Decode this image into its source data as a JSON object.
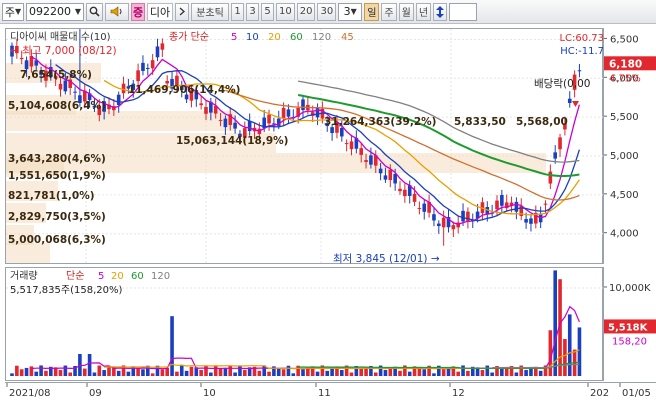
{
  "toolbar": {
    "market_label": "주",
    "stock_code": "092200",
    "stock_name": "디아",
    "period_label": "분초틱",
    "intervals": [
      "1",
      "3",
      "5",
      "10",
      "20",
      "30"
    ],
    "interval_value": "3",
    "day_label": "일",
    "week_label": "주",
    "month_label": "월",
    "year_label": "년",
    "icons": [
      "search-icon",
      "speaker-icon",
      "chevron-right-icon",
      "up-down-arrow-icon"
    ]
  },
  "price_pane": {
    "title": "디아이씨 매물대 수(10)",
    "ma_header": "종가 단순",
    "ma_periods": [
      {
        "label": "5",
        "color": "#cc00cc"
      },
      {
        "label": "10",
        "color": "#1a3fbf"
      },
      {
        "label": "20",
        "color": "#e8a000"
      },
      {
        "label": "60",
        "color": "#1f9a2f"
      },
      {
        "label": "120",
        "color": "#808080"
      },
      {
        "label": "45",
        "color": "#d07030"
      }
    ],
    "high_label": "최고 7,000 (08/12)",
    "low_label": "최저 3,845 (12/01)",
    "dividend_label": "배당락(0,00",
    "volume_profile": [
      "7,654(5,8%)",
      "5,104,608(6,4%)",
      "11,469,906(14,4%)",
      "15,063,144(18,9%)",
      "31,264,363(39,2%)",
      "5,833,50",
      "5,568,00",
      "3,643,280(4,6%)",
      "1,551,650(1,9%)",
      "821,781(1,0%)",
      "2,829,750(3,5%)",
      "5,000,068(6,3%)"
    ],
    "lc_label": "LC:60.73",
    "hc_label": "HC:-11.7",
    "last_price": "6,180",
    "change_pct": "4.75%",
    "y_ticks": [
      "6,500",
      "6,000",
      "5,500",
      "5,000",
      "4,500",
      "4,000"
    ]
  },
  "volume_pane": {
    "title": "거래량",
    "ma_header": "단순",
    "ma_periods": [
      {
        "label": "5",
        "color": "#cc00cc"
      },
      {
        "label": "20",
        "color": "#e8a000"
      },
      {
        "label": "60",
        "color": "#1f9a2f"
      },
      {
        "label": "120",
        "color": "#808080"
      }
    ],
    "current_volume": "5,517,835주(158,20%)",
    "y_tick": "10,000K",
    "last_volume": "5,518K",
    "volume_pct": "158,20"
  },
  "x_axis": {
    "labels": [
      "2021/08",
      "09",
      "10",
      "11",
      "12",
      "202",
      "01/05"
    ]
  },
  "colors": {
    "up": "#e0282e",
    "down": "#1a3fbf",
    "profile": "#f4dcc0"
  }
}
